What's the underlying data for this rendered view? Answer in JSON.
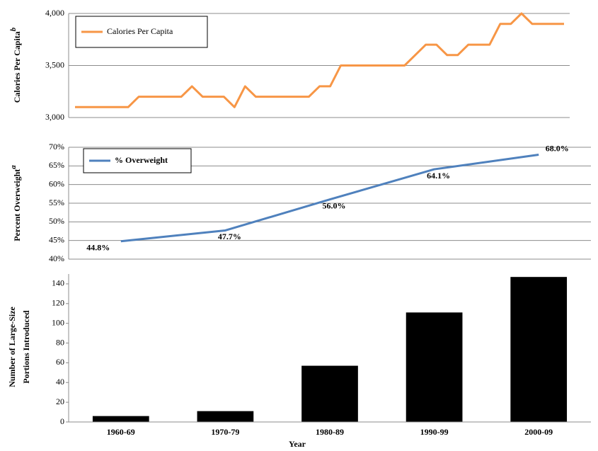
{
  "chart_data": [
    {
      "type": "line",
      "ylabel": "Calories Per Capita",
      "ylabel_sup": "b",
      "series": [
        {
          "name": "Calories Per Capita",
          "color": "#f79646",
          "values": [
            3100,
            3100,
            3100,
            3100,
            3100,
            3100,
            3200,
            3200,
            3200,
            3200,
            3200,
            3300,
            3200,
            3200,
            3200,
            3100,
            3300,
            3200,
            3200,
            3200,
            3200,
            3200,
            3200,
            3300,
            3300,
            3500,
            3500,
            3500,
            3500,
            3500,
            3500,
            3500,
            3600,
            3700,
            3700,
            3600,
            3600,
            3700,
            3700,
            3700,
            3900,
            3900,
            4000,
            3900,
            3900,
            3900,
            3900
          ]
        }
      ],
      "ylim": [
        3000,
        4000
      ],
      "yticks": [
        {
          "value": 3000,
          "label": "3,000"
        },
        {
          "value": 3500,
          "label": "3,500"
        },
        {
          "value": 4000,
          "label": "4,000"
        }
      ],
      "grid": true,
      "legend": "upper left"
    },
    {
      "type": "line",
      "ylabel": "Percent Overweight",
      "ylabel_sup": "a",
      "series": [
        {
          "name": "% Overweight",
          "color": "#4f81bd",
          "values": [
            44.8,
            47.7,
            56.0,
            64.1,
            68.0
          ],
          "value_labels": [
            "44.8%",
            "47.7%",
            "56.0%",
            "64.1%",
            "68.0%"
          ]
        }
      ],
      "ylim": [
        40,
        70
      ],
      "yticks": [
        {
          "value": 40,
          "label": "40%"
        },
        {
          "value": 45,
          "label": "45%"
        },
        {
          "value": 50,
          "label": "50%"
        },
        {
          "value": 55,
          "label": "55%"
        },
        {
          "value": 60,
          "label": "60%"
        },
        {
          "value": 65,
          "label": "65%"
        },
        {
          "value": 70,
          "label": "70%"
        }
      ],
      "grid": true,
      "legend": "upper left"
    },
    {
      "type": "bar",
      "ylabel": [
        "Number of Large-Size",
        "Portions Introduced"
      ],
      "xlabel": "Year",
      "categories": [
        "1960-69",
        "1970-79",
        "1980-89",
        "1990-99",
        "2000-09"
      ],
      "values": [
        6,
        11,
        57,
        111,
        147
      ],
      "color": "#000000",
      "ylim": [
        0,
        150
      ],
      "yticks": [
        0,
        20,
        40,
        60,
        80,
        100,
        120,
        140
      ],
      "grid": false
    }
  ]
}
